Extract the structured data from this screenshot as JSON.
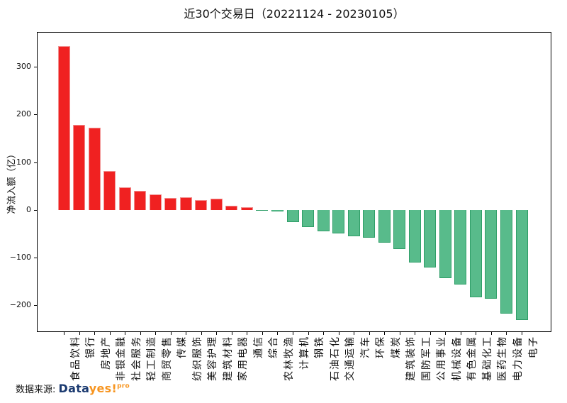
{
  "chart_data": {
    "type": "bar",
    "title": "近30个交易日（20221124 - 20230105）",
    "ylabel": "净流入额（亿）",
    "categories": [
      "食品饮料",
      "银行",
      "房地产",
      "非银金融",
      "社会服务",
      "轻工制造",
      "商贸零售",
      "传媒",
      "纺织服饰",
      "美容护理",
      "建筑材料",
      "家用电器",
      "通信",
      "综合",
      "农林牧渔",
      "计算机",
      "钢铁",
      "石油石化",
      "交通运输",
      "汽车",
      "环保",
      "煤炭",
      "建筑装饰",
      "国防军工",
      "公用事业",
      "机械设备",
      "有色金属",
      "基础化工",
      "医药生物",
      "电力设备",
      "电子"
    ],
    "values": [
      343,
      179,
      173,
      82,
      47,
      40,
      32,
      25,
      27,
      21,
      23,
      9,
      5,
      -2,
      -3,
      -25,
      -36,
      -45,
      -49,
      -56,
      -58,
      -69,
      -82,
      -110,
      -121,
      -143,
      -157,
      -183,
      -187,
      -218,
      -231
    ],
    "ylim": [
      -255,
      372
    ],
    "yticks": [
      300,
      200,
      100,
      0,
      -100,
      -200
    ],
    "ytick_labels": [
      "300",
      "200",
      "100",
      "0",
      "−100",
      "−200"
    ],
    "bar_colors": {
      "positive": "#f02121",
      "negative": "#58bb8b"
    },
    "grid": false,
    "legend": null
  },
  "footer": {
    "prefix": "数据来源: ",
    "logo": {
      "data": "Data",
      "yes": "yes!",
      "pro": "pro"
    },
    "logo_colors": {
      "data": "#1b3a70",
      "yes": "#f7941e"
    }
  }
}
